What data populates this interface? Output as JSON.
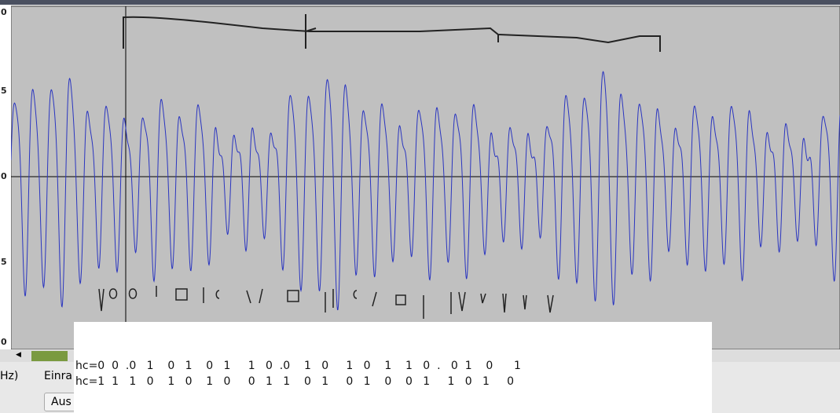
{
  "ruler": {
    "labels": [
      "0",
      "5",
      "0",
      "5",
      "0"
    ]
  },
  "toolbar": {
    "rate_label": "Hz)",
    "snap_label": "Einra",
    "button": "Aus"
  },
  "notes": {
    "line1": "hc=0  0  .0   1    0   1    0   1     1   0  .0    1   0     1   0    1    1   0  .   0  1    0      1",
    "line2": "hc=1  1   1   0    1   0    1   0     0   1   1    0   1     0   1    0    0   1     1   0   1     0"
  }
}
